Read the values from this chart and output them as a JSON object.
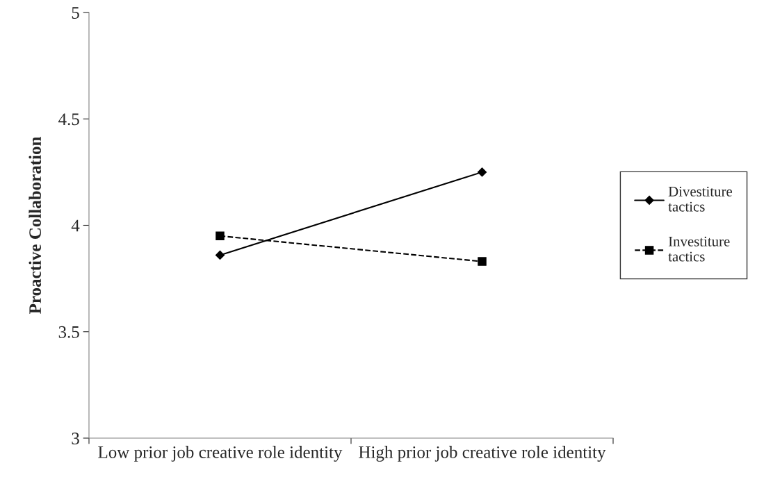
{
  "chart_data": {
    "type": "line",
    "ylabel": "Proactive Collaboration",
    "categories": [
      "Low prior job creative role identity",
      "High prior job creative role identity"
    ],
    "series": [
      {
        "name": "Divestiture tactics",
        "color": "#000000",
        "values": [
          3.86,
          4.25
        ],
        "marker": "diamond",
        "line_style": "solid"
      },
      {
        "name": "Investiture tactics",
        "color": "#000000",
        "values": [
          3.95,
          3.83
        ],
        "marker": "square",
        "line_style": "dashed"
      }
    ],
    "ylim": [
      3,
      5
    ],
    "yticks": [
      3,
      3.5,
      4,
      4.5,
      5
    ],
    "grid": false,
    "legend": "right"
  }
}
